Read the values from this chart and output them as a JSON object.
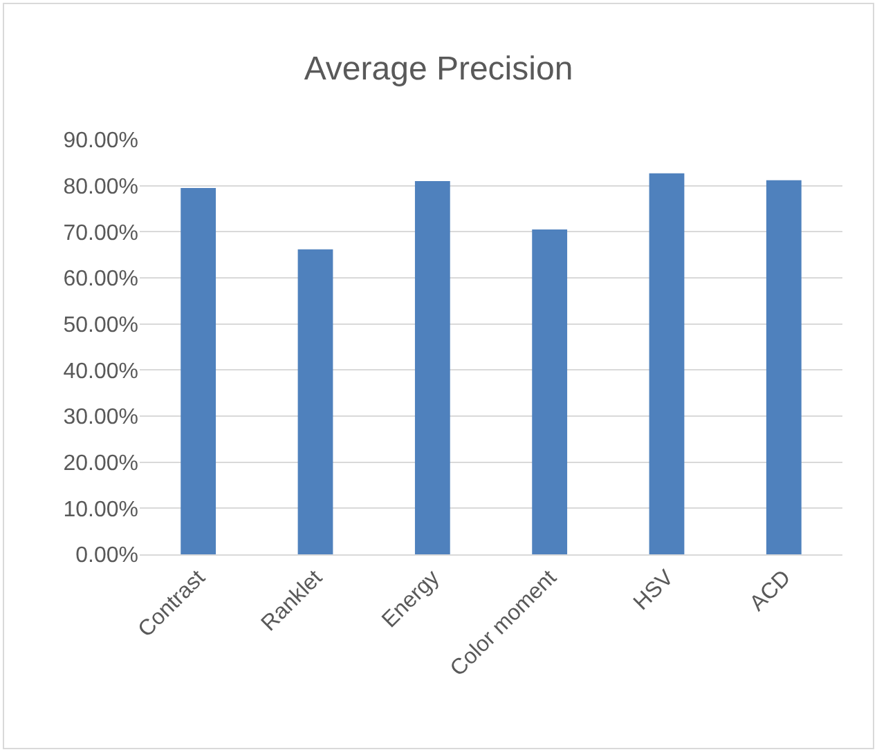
{
  "chart_data": {
    "type": "bar",
    "title": "Average Precision",
    "categories": [
      "Contrast",
      "Ranklet",
      "Energy",
      "Color moment",
      "HSV",
      "ACD"
    ],
    "values": [
      79.5,
      66.2,
      81.0,
      70.5,
      82.7,
      81.2
    ],
    "color": "#4f81bd",
    "ylim": [
      0,
      90
    ],
    "yticks": [
      {
        "value": 0,
        "label": "0.00%"
      },
      {
        "value": 10,
        "label": "10.00%"
      },
      {
        "value": 20,
        "label": "20.00%"
      },
      {
        "value": 30,
        "label": "30.00%"
      },
      {
        "value": 40,
        "label": "40.00%"
      },
      {
        "value": 50,
        "label": "50.00%"
      },
      {
        "value": 60,
        "label": "60.00%"
      },
      {
        "value": 70,
        "label": "70.00%"
      },
      {
        "value": 80,
        "label": "80.00%"
      },
      {
        "value": 90,
        "label": "90.00%"
      }
    ],
    "grid": "y",
    "legend": false
  }
}
